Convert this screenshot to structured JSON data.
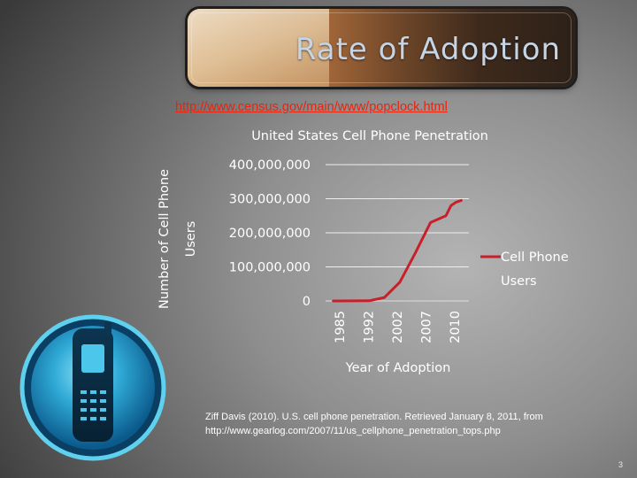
{
  "slide": {
    "title": "Rate of Adoption",
    "source_link": "http://www.census.gov/main/www/popclock.html",
    "citation_line1": "Ziff Davis (2010). U.S. cell phone penetration. Retrieved January 8, 2011, from",
    "citation_line2": "http://www.gearlog.com/2007/11/us_cellphone_penetration_tops.php",
    "page_number": "3"
  },
  "icons": {
    "banner": "writing-hand-image",
    "phone": "mobile-phone-icon"
  },
  "colors": {
    "series": "#c8202a",
    "link": "#e8250f"
  },
  "chart_data": {
    "type": "line",
    "title": "United States Cell Phone Penetration",
    "xlabel": "Year of Adoption",
    "ylabel_lines": [
      "Number of Cell Phone",
      "Users"
    ],
    "x_tick_labels": [
      "1985",
      "1992",
      "2002",
      "2007",
      "2010"
    ],
    "y_tick_labels": [
      "400,000,000",
      "300,000,000",
      "200,000,000",
      "100,000,000",
      "0"
    ],
    "ylim": [
      0,
      400000000
    ],
    "grid": true,
    "legend_position": "right",
    "series": [
      {
        "name": "Cell Phone Users",
        "legend_lines": [
          "Cell Phone",
          "Users"
        ],
        "x": [
          1985,
          1992,
          1995,
          1998,
          2001,
          2004,
          2007,
          2008,
          2009,
          2010
        ],
        "values": [
          0,
          500000,
          10000000,
          55000000,
          140000000,
          230000000,
          250000000,
          280000000,
          290000000,
          295000000
        ]
      }
    ]
  }
}
